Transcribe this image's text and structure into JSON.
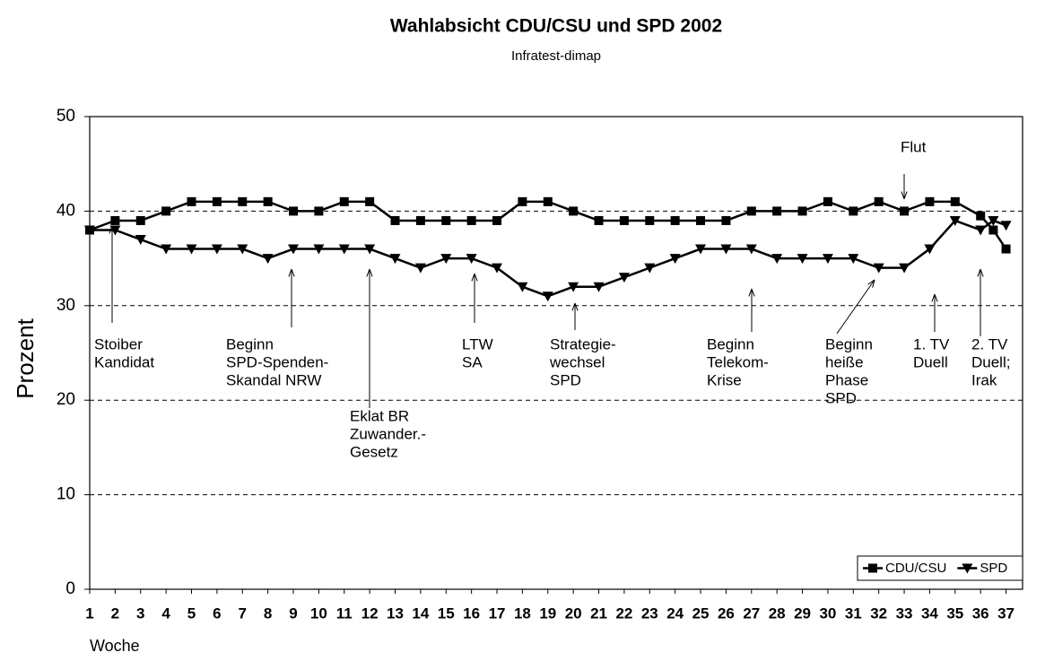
{
  "chart_data": {
    "type": "line",
    "title": "Wahlabsicht CDU/CSU und SPD 2002",
    "subtitle": "Infratest-dimap",
    "y_label": "Prozent",
    "x_label": "Woche",
    "x": [
      1,
      2,
      3,
      4,
      5,
      6,
      7,
      8,
      9,
      10,
      11,
      12,
      13,
      14,
      15,
      16,
      17,
      18,
      19,
      20,
      21,
      22,
      23,
      24,
      25,
      26,
      27,
      28,
      29,
      30,
      31,
      32,
      33,
      34,
      35,
      36,
      36.5,
      37
    ],
    "series": [
      {
        "name": "CDU/CSU",
        "color": "#000000",
        "marker": "square",
        "values": [
          38,
          39,
          39,
          40,
          41,
          41,
          41,
          41,
          40,
          40,
          41,
          41,
          39,
          39,
          39,
          39,
          39,
          41,
          41,
          40,
          39,
          39,
          39,
          39,
          39,
          39,
          40,
          40,
          40,
          41,
          40,
          41,
          40,
          41,
          41,
          39.5,
          38,
          36
        ]
      },
      {
        "name": "SPD",
        "color": "#000000",
        "marker": "triangle-down",
        "values": [
          38,
          38,
          37,
          36,
          36,
          36,
          36,
          35,
          36,
          36,
          36,
          36,
          35,
          34,
          35,
          35,
          34,
          32,
          31,
          32,
          32,
          33,
          34,
          35,
          36,
          36,
          36,
          35,
          35,
          35,
          35,
          34,
          34,
          36,
          39,
          38,
          39,
          38.5
        ]
      }
    ],
    "xlim": [
      1,
      37.65
    ],
    "xticks": [
      1,
      2,
      3,
      4,
      5,
      6,
      7,
      8,
      9,
      10,
      11,
      12,
      13,
      14,
      15,
      16,
      17,
      18,
      19,
      20,
      21,
      22,
      23,
      24,
      25,
      26,
      27,
      28,
      29,
      30,
      31,
      32,
      33,
      34,
      35,
      36,
      37
    ],
    "ylim": [
      0,
      50
    ],
    "yticks": [
      0,
      10,
      20,
      30,
      40,
      50
    ],
    "grid": true,
    "legend": "lower right",
    "annotations": [
      [
        "Flut"
      ],
      [
        "Stoiber",
        "Kandidat"
      ],
      [
        "Beginn",
        "SPD-Spenden-",
        "Skandal NRW"
      ],
      [
        "Eklat BR",
        "Zuwander.-",
        "Gesetz"
      ],
      [
        "LTW",
        "SA"
      ],
      [
        "Strategie-",
        "wechsel",
        "SPD"
      ],
      [
        "Beginn",
        "Telekom-",
        "Krise"
      ],
      [
        "Beginn",
        "heiße",
        "Phase",
        "SPD"
      ],
      [
        "1. TV",
        "Duell"
      ],
      [
        "2. TV",
        "Duell;",
        "Irak"
      ]
    ]
  }
}
